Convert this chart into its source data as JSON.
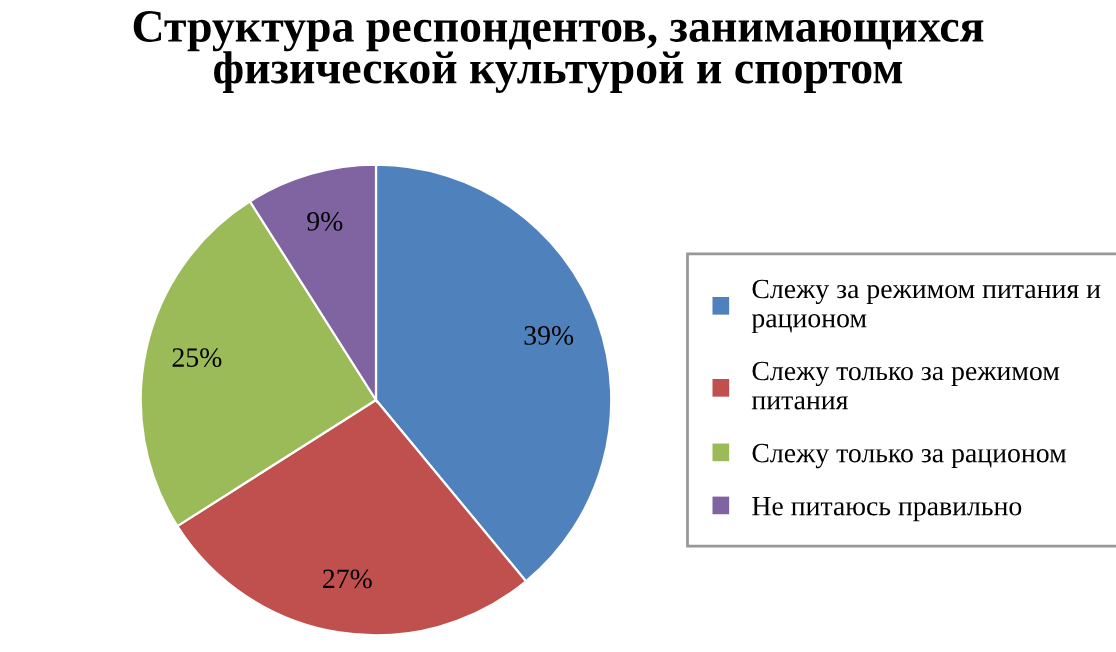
{
  "chart_data": {
    "type": "pie",
    "title": "Структура респондентов, занимающихся физической культурой и спортом",
    "categories": [
      "Слежу за режимом питания и рационом",
      "Слежу только за режимом питания",
      "Слежу только за рационом",
      "Не питаюсь правильно"
    ],
    "values": [
      39,
      27,
      25,
      9
    ],
    "colors": [
      "#4f81bd",
      "#c0504d",
      "#9bbb59",
      "#8064a2"
    ],
    "value_labels": [
      "39%",
      "27%",
      "25%",
      "9%"
    ],
    "legend": "right"
  }
}
